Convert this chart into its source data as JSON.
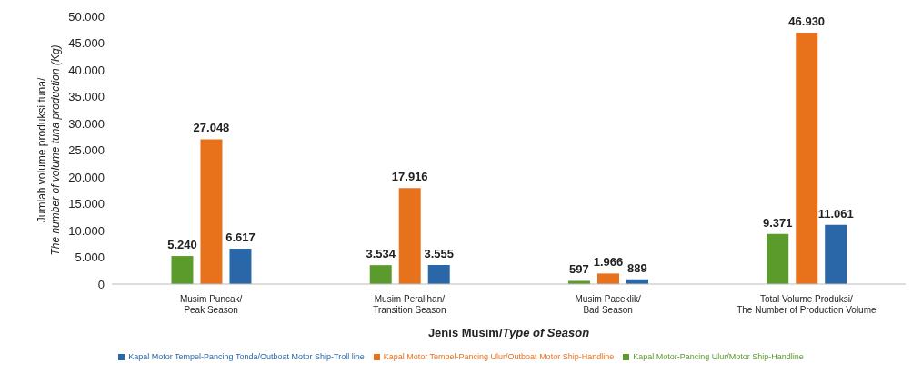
{
  "chart_data": {
    "type": "bar",
    "xlabel": "Jenis Musim/Type of Season",
    "ylabel": "Jumlah volume produksi tuna/The number of volume tuna production (Kg)",
    "categories": [
      "Musim Puncak/Peak Season",
      "Musim Peralihan/Transition Season",
      "Musim Paceklik/Bad Season",
      "Total Volume Produksi/The Number of Production Volume"
    ],
    "series": [
      {
        "name": "Kapal Motor-Pancing Ulur/Motor Ship-Handline",
        "color": "#5b9b2c",
        "values": [
          5240,
          3534,
          597,
          9371
        ],
        "value_labels": [
          "5.240",
          "3.534",
          "597",
          "9.371"
        ]
      },
      {
        "name": "Kapal Motor Tempel-Pancing Ulur/Outboat Motor Ship-Handline",
        "color": "#e8721c",
        "values": [
          27048,
          17916,
          1966,
          46930
        ],
        "value_labels": [
          "27.048",
          "17.916",
          "1.966",
          "46.930"
        ]
      },
      {
        "name": "Kapal Motor Tempel-Pancing Tonda/Outboat Motor Ship-Troll line",
        "color": "#2a67a8",
        "values": [
          6617,
          3555,
          889,
          11061
        ],
        "value_labels": [
          "6.617",
          "3.555",
          "889",
          "11.061"
        ]
      }
    ],
    "ylim": [
      0,
      50000
    ],
    "yticks": [
      {
        "value": 0,
        "label": "0"
      },
      {
        "value": 5000,
        "label": "5.000"
      },
      {
        "value": 10000,
        "label": "10.000"
      },
      {
        "value": 15000,
        "label": "15.000"
      },
      {
        "value": 20000,
        "label": "20.000"
      },
      {
        "value": 25000,
        "label": "25.000"
      },
      {
        "value": 30000,
        "label": "30.000"
      },
      {
        "value": 35000,
        "label": "35.000"
      },
      {
        "value": 40000,
        "label": "40.000"
      },
      {
        "value": 45000,
        "label": "45.000"
      },
      {
        "value": 50000,
        "label": "50.000"
      }
    ],
    "grid": false,
    "legend": "bottom"
  }
}
